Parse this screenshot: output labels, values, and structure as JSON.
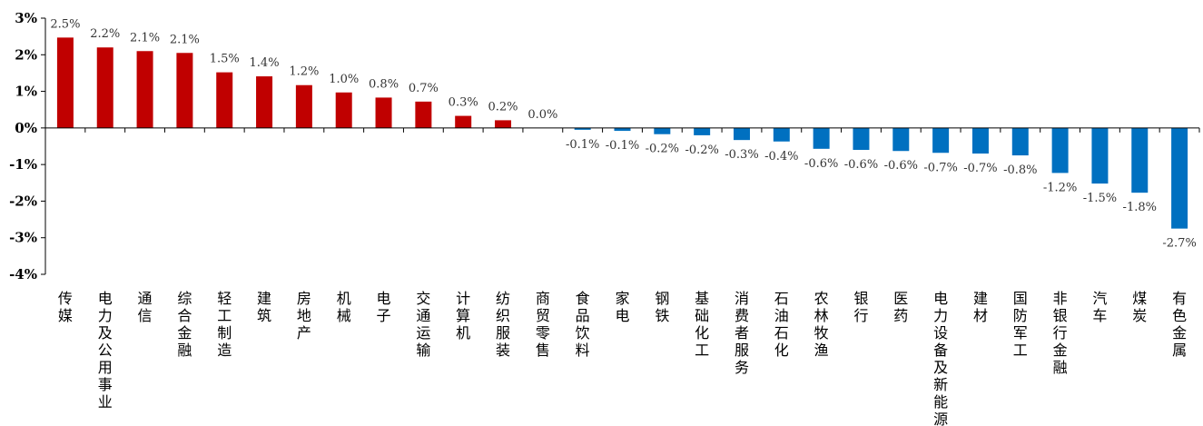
{
  "chart_data": {
    "type": "bar",
    "categories": [
      "传媒",
      "电力及公用事业",
      "通信",
      "综合金融",
      "轻工制造",
      "建筑",
      "房地产",
      "机械",
      "电子",
      "交通运输",
      "计算机",
      "纺织服装",
      "商贸零售",
      "食品饮料",
      "家电",
      "钢铁",
      "基础化工",
      "消费者服务",
      "石油石化",
      "农林牧渔",
      "银行",
      "医药",
      "电力设备及新能源",
      "建材",
      "国防军工",
      "非银行金融",
      "汽车",
      "煤炭",
      "有色金属"
    ],
    "values": [
      2.47,
      2.2,
      2.1,
      2.05,
      1.52,
      1.41,
      1.17,
      0.97,
      0.83,
      0.72,
      0.33,
      0.21,
      0.0,
      -0.05,
      -0.08,
      -0.17,
      -0.2,
      -0.33,
      -0.37,
      -0.57,
      -0.6,
      -0.63,
      -0.68,
      -0.7,
      -0.75,
      -1.23,
      -1.52,
      -1.77,
      -2.75
    ],
    "value_labels": [
      "2.5%",
      "2.2%",
      "2.1%",
      "2.1%",
      "1.5%",
      "1.4%",
      "1.2%",
      "1.0%",
      "0.8%",
      "0.7%",
      "0.3%",
      "0.2%",
      "0.0%",
      "-0.1%",
      "-0.1%",
      "-0.2%",
      "-0.2%",
      "-0.3%",
      "-0.4%",
      "-0.6%",
      "-0.6%",
      "-0.6%",
      "-0.7%",
      "-0.7%",
      "-0.8%",
      "-1.2%",
      "-1.5%",
      "-1.8%",
      "-2.7%"
    ],
    "yticks": [
      3,
      2,
      1,
      0,
      -1,
      -2,
      -3,
      -4
    ],
    "ytick_labels": [
      "3%",
      "2%",
      "1%",
      "0%",
      "-1%",
      "-2%",
      "-3%",
      "-4%"
    ],
    "ylim": [
      -4,
      3
    ],
    "title": "",
    "xlabel": "",
    "ylabel": "",
    "grid": false,
    "colors": {
      "positive": "#C00000",
      "negative": "#0070C0"
    }
  }
}
